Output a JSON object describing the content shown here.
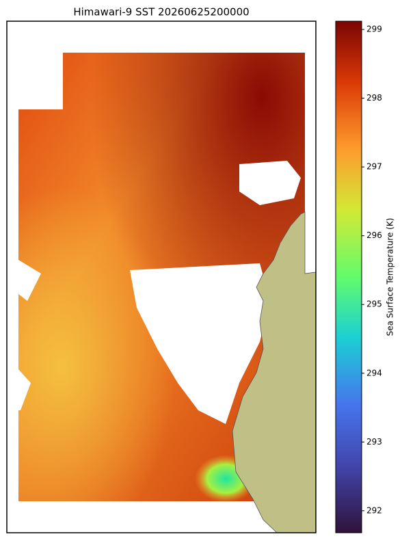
{
  "chart_data": {
    "type": "heatmap",
    "title": "Himawari-9 SST 20260625200000",
    "colorbar": {
      "label": "Sea Surface Temperature (K)",
      "lim": [
        291.68,
        299.12
      ],
      "ticks": [
        292,
        293,
        294,
        295,
        296,
        297,
        298,
        299
      ]
    }
  }
}
